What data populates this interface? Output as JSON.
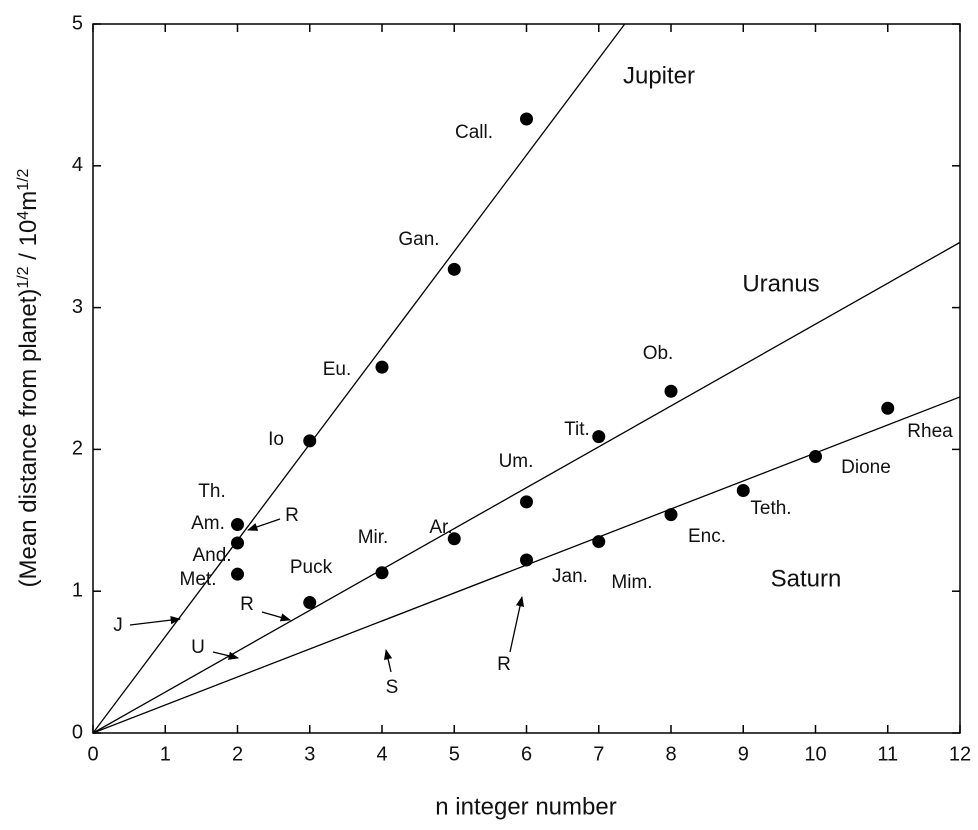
{
  "chart_data": {
    "type": "scatter",
    "xlabel": "n  integer number",
    "ylabel_parts": [
      "(Mean distance from planet)",
      "1/2",
      " / 10",
      "4",
      "m",
      "1/2"
    ],
    "xlim": [
      0,
      12
    ],
    "ylim": [
      0,
      5
    ],
    "xticks": [
      0,
      1,
      2,
      3,
      4,
      5,
      6,
      7,
      8,
      9,
      10,
      11,
      12
    ],
    "yticks": [
      0,
      1,
      2,
      3,
      4,
      5
    ],
    "color": "#000000",
    "lines": [
      {
        "name": "Jupiter",
        "x": [
          0,
          7.36
        ],
        "values": [
          0,
          5
        ]
      },
      {
        "name": "Uranus",
        "x": [
          0,
          12
        ],
        "values": [
          0,
          3.46
        ]
      },
      {
        "name": "Saturn",
        "x": [
          0,
          12
        ],
        "values": [
          0,
          2.37
        ]
      }
    ],
    "points": {
      "x": [
        2,
        2,
        2,
        3,
        4,
        5,
        6,
        3,
        4,
        5,
        6,
        7,
        8,
        6,
        7,
        8,
        9,
        10,
        11
      ],
      "values": [
        1.47,
        1.34,
        1.12,
        2.06,
        2.58,
        3.27,
        4.33,
        0.92,
        1.13,
        1.37,
        1.63,
        2.09,
        2.41,
        1.22,
        1.35,
        1.54,
        1.71,
        1.95,
        2.29
      ],
      "labels": [
        "Th.",
        "Am.",
        "And.",
        "Io",
        "Eu.",
        "Gan.",
        "Call.",
        "Puck",
        "Mir.",
        "Ar.",
        "Um.",
        "Tit.",
        "Ob.",
        "Jan.",
        "Mim.",
        "Enc.",
        "Teth.",
        "Dione",
        "Rhea"
      ]
    },
    "annotations": [
      "Met.",
      "R",
      "R",
      "R",
      "J",
      "U",
      "S"
    ]
  }
}
